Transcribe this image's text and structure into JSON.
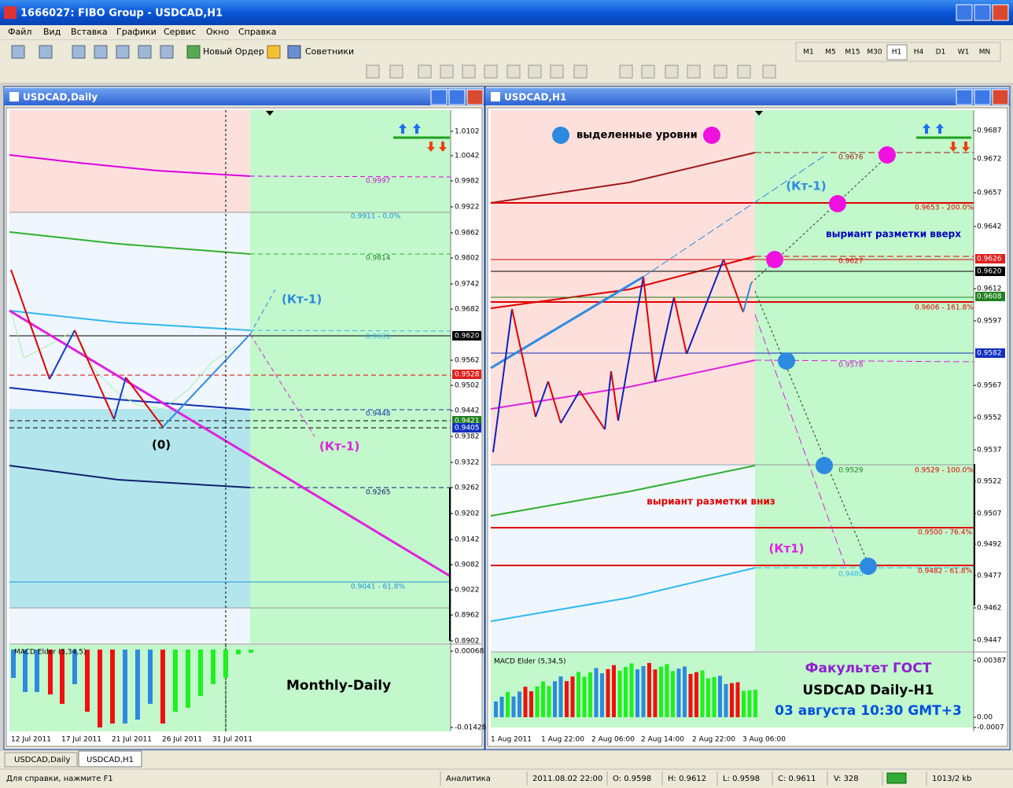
{
  "window": {
    "title": "1666027: FIBO Group - USDCAD,H1",
    "menu": [
      "Файл",
      "Вид",
      "Вставка",
      "Графики",
      "Сервис",
      "Окно",
      "Справка"
    ],
    "toolbar": [
      "Новый Ордер",
      "Советники"
    ],
    "timeframes": [
      "M1",
      "M5",
      "M15",
      "M30",
      "H1",
      "H4",
      "D1",
      "W1",
      "MN"
    ]
  },
  "charts": [
    {
      "title": "USDCAD,Daily",
      "price_axis": [
        "1.0102",
        "1.0042",
        "0.9982",
        "0.9922",
        "0.9862",
        "0.9802",
        "0.9742",
        "0.9682",
        "0.9620",
        "0.9562",
        "0.9528",
        "0.9502",
        "0.9442",
        "0.9421",
        "0.9405",
        "0.9382",
        "0.9322",
        "0.9262",
        "0.9202",
        "0.9142",
        "0.9082",
        "0.9022",
        "0.8962",
        "0.8902",
        "0.00068",
        "-0.01428"
      ],
      "levels": [
        "0.9997",
        "0.9911 - 0.0%",
        "0.9814",
        "0.9631",
        "0.9448",
        "0.9265",
        "0.9041 - 61.8%"
      ],
      "annotations": [
        "(Кт-1)",
        "(Кт-1)",
        "(0)",
        "Monthly-Daily"
      ],
      "indicator": "MACD Elder (5,34,5)",
      "dates": [
        "12 Jul 2011",
        "17 Jul 2011",
        "21 Jul 2011",
        "26 Jul 2011",
        "31 Jul 2011"
      ]
    },
    {
      "title": "USDCAD,H1",
      "price_axis": [
        "0.9687",
        "0.9672",
        "0.9657",
        "0.9642",
        "0.9626",
        "0.9620",
        "0.9612",
        "0.9608",
        "0.9597",
        "0.9582",
        "0.9567",
        "0.9552",
        "0.9537",
        "0.9522",
        "0.9507",
        "0.9492",
        "0.9477",
        "0.9462",
        "0.9447",
        "0.00387",
        "0.00",
        "-0.0007"
      ],
      "levels": [
        "0.9676",
        "0.9653 - 200.0%",
        "0.9627",
        "0.9606 - 161.8%",
        "0.9578",
        "0.9529",
        "0.9529 - 100.0%",
        "0.9500 - 76.4%",
        "0.9482 - 61.8%",
        "0.9480"
      ],
      "annotations": [
        "выделенные уровни",
        "(Кт-1)",
        "выриант разметки вверх",
        "выриант разметки вниз",
        "(Кт1)",
        "Факультет ГОСТ",
        "USDCAD Daily-H1",
        "03 августа 10:30 GMT+3"
      ],
      "indicator": "MACD Elder (5,34,5)",
      "dates": [
        "1 Aug 2011",
        "1 Aug 22:00",
        "2 Aug 06:00",
        "2 Aug 14:00",
        "2 Aug 22:00",
        "3 Aug 06:00"
      ]
    }
  ],
  "tabs": [
    "USDCAD,Daily",
    "USDCAD,H1"
  ],
  "status": [
    "Для справки, нажмите F1",
    "Аналитика",
    "2011.08.02 22:00",
    "O: 0.9598",
    "H: 0.9612",
    "L: 0.9598",
    "C: 0.9611",
    "V: 328",
    "1013/2 kb"
  ]
}
